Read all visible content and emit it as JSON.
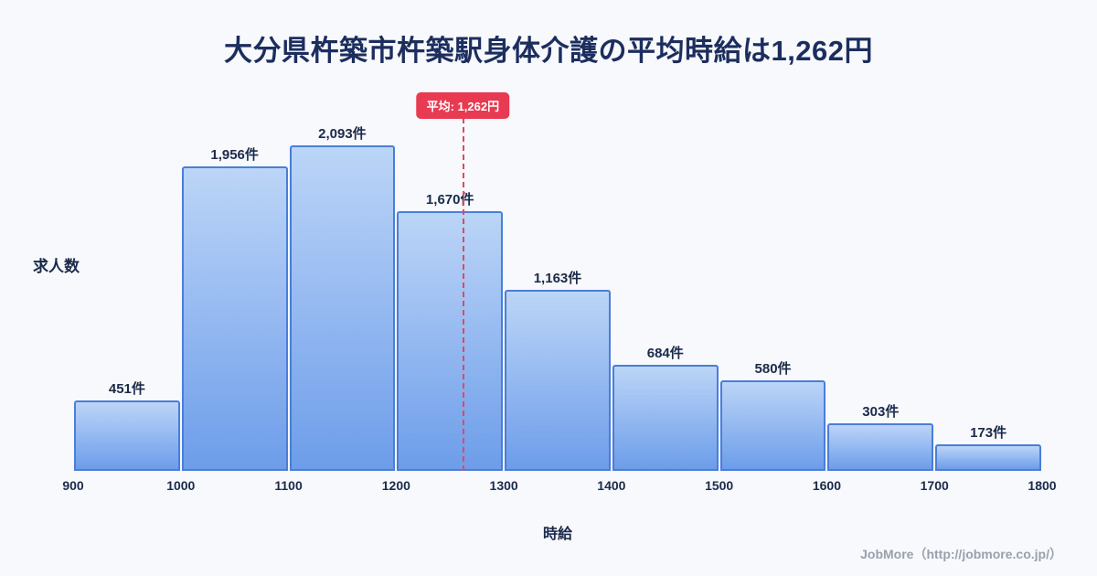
{
  "title": "大分県杵築市杵築駅身体介護の平均時給は1,262円",
  "chart_data": {
    "type": "bar",
    "subtype": "histogram",
    "title": "大分県杵築市杵築駅身体介護の平均時給は1,262円",
    "xlabel": "時給",
    "ylabel": "求人数",
    "x_range": [
      900,
      1800
    ],
    "bin_width": 100,
    "bin_edges": [
      900,
      1000,
      1100,
      1200,
      1300,
      1400,
      1500,
      1600,
      1700,
      1800
    ],
    "x_ticks": [
      "900",
      "1000",
      "1100",
      "1200",
      "1300",
      "1400",
      "1500",
      "1600",
      "1700",
      "1800"
    ],
    "values": [
      451,
      1956,
      2093,
      1670,
      1163,
      684,
      580,
      303,
      173
    ],
    "labels": [
      "451件",
      "1,956件",
      "2,093件",
      "1,670件",
      "1,163件",
      "684件",
      "580件",
      "303件",
      "173件"
    ],
    "average": 1262,
    "average_label": "平均: 1,262円",
    "grid": false,
    "legend": false,
    "colors": {
      "background": "#f7f9fd",
      "bar_fill_top": "#bcd5f7",
      "bar_fill_bottom": "#6d9dea",
      "bar_border": "#4a7ed8",
      "average_line": "#e8465a",
      "average_badge_bg": "#e83a50",
      "average_badge_text": "#ffffff",
      "title_text": "#1c2e5e",
      "axis_text": "#1b2a4a",
      "footer_text": "#98a1ae"
    }
  },
  "footer": {
    "credit": "JobMore（http://jobmore.co.jp/）"
  }
}
